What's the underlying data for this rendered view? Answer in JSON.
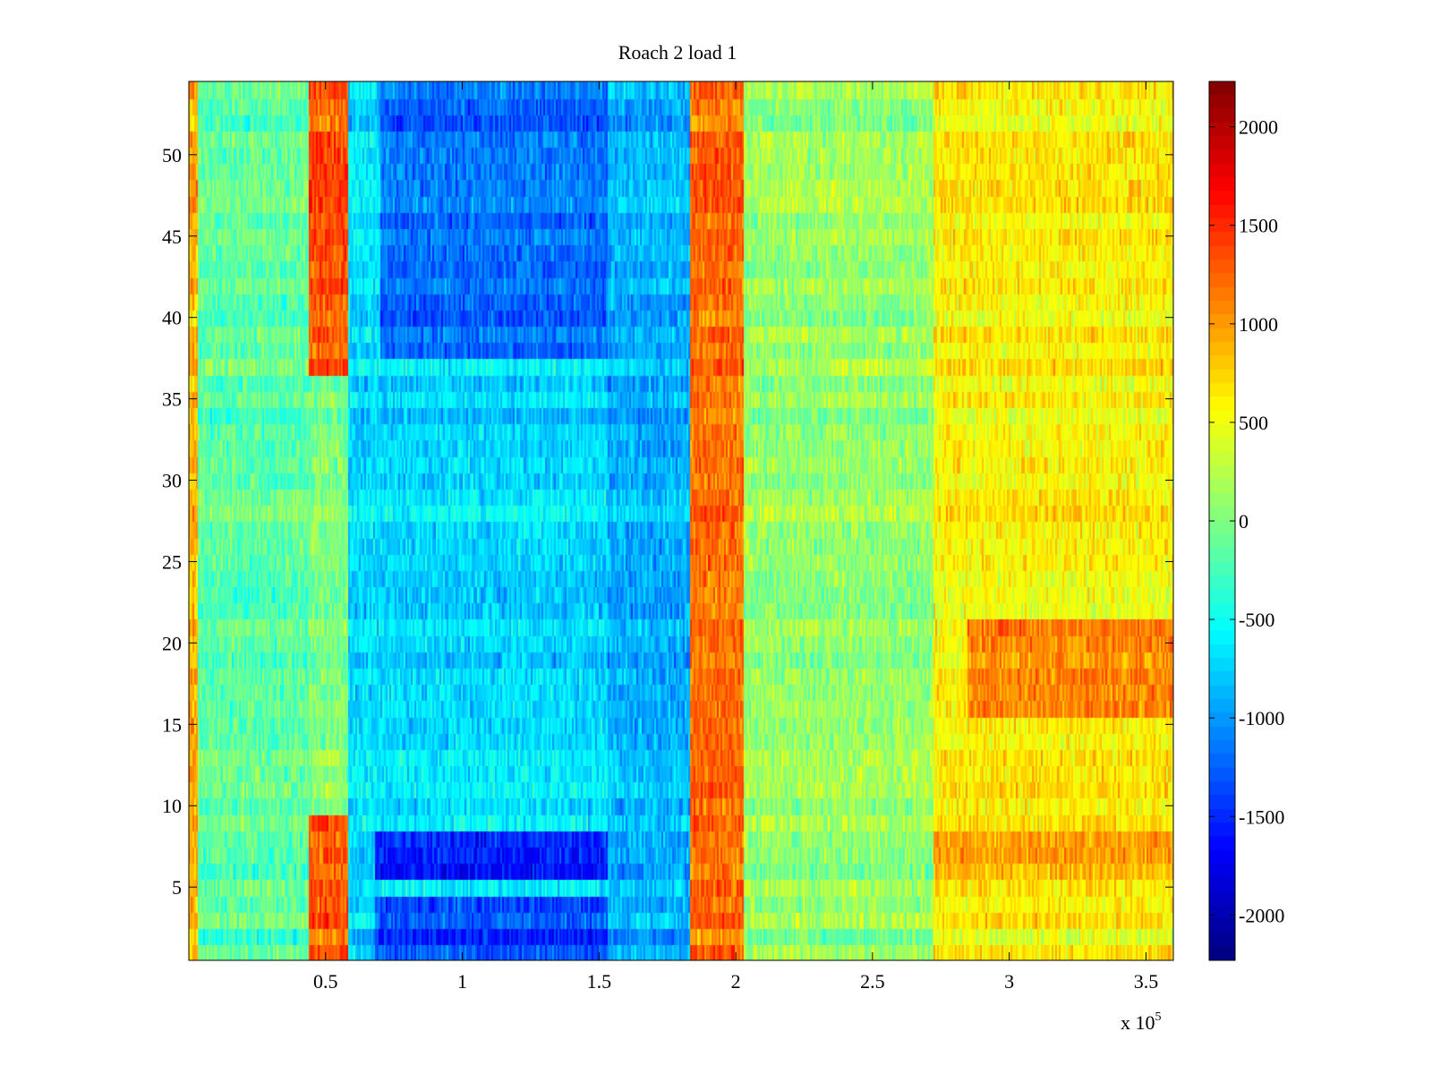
{
  "chart_data": {
    "type": "heatmap",
    "title": "Roach 2 load 1",
    "xlabel": "",
    "ylabel": "",
    "x_exponent_label": {
      "base": "x 10",
      "exp": "5"
    },
    "xlim": [
      0,
      3.6
    ],
    "ylim": [
      0.5,
      54.5
    ],
    "x_ticks": [
      0.5,
      1,
      1.5,
      2,
      2.5,
      3,
      3.5
    ],
    "x_tick_labels": [
      "0.5",
      "1",
      "1.5",
      "2",
      "2.5",
      "3",
      "3.5"
    ],
    "y_ticks": [
      5,
      10,
      15,
      20,
      25,
      30,
      35,
      40,
      45,
      50
    ],
    "y_tick_labels": [
      "5",
      "10",
      "15",
      "20",
      "25",
      "30",
      "35",
      "40",
      "45",
      "50"
    ],
    "rows": 54,
    "colormap": "jet",
    "clim": [
      -2230,
      2230
    ],
    "colorbar_ticks": [
      2000,
      1500,
      1000,
      500,
      0,
      -500,
      -1000,
      -1500,
      -2000
    ],
    "colorbar_tick_labels": [
      "2000",
      "1500",
      "1000",
      "500",
      "0",
      "-500",
      "-1000",
      "-1500",
      "-2000"
    ],
    "bands": [
      {
        "x": [
          0,
          0.03
        ],
        "value": 900,
        "rows": "all"
      },
      {
        "x": [
          0.03,
          0.44
        ],
        "value": -150,
        "rows": "all"
      },
      {
        "x": [
          0.44,
          0.58
        ],
        "value": 1300,
        "rows": [
          1,
          9
        ]
      },
      {
        "x": [
          0.44,
          0.58
        ],
        "value": 1300,
        "rows": [
          37,
          54
        ]
      },
      {
        "x": [
          0.58,
          1.53
        ],
        "value": -700,
        "rows": "all"
      },
      {
        "x": [
          0.68,
          1.53
        ],
        "value": -1500,
        "rows": [
          6,
          8
        ]
      },
      {
        "x": [
          0.68,
          1.53
        ],
        "value": -1350,
        "rows": [
          1,
          4
        ]
      },
      {
        "x": [
          0.7,
          1.53
        ],
        "value": -1200,
        "rows": [
          38,
          54
        ]
      },
      {
        "x": [
          1.53,
          1.83
        ],
        "value": -900,
        "rows": "all"
      },
      {
        "x": [
          1.83,
          2.03
        ],
        "value": 1200,
        "rows": "all"
      },
      {
        "x": [
          2.03,
          2.72
        ],
        "value": 100,
        "rows": "all"
      },
      {
        "x": [
          2.72,
          3.6
        ],
        "value": 600,
        "rows": "all"
      },
      {
        "x": [
          2.85,
          3.6
        ],
        "value": 1100,
        "rows": [
          16,
          21
        ]
      },
      {
        "x": [
          2.72,
          3.6
        ],
        "value": 1000,
        "rows": [
          6,
          8
        ]
      }
    ]
  }
}
